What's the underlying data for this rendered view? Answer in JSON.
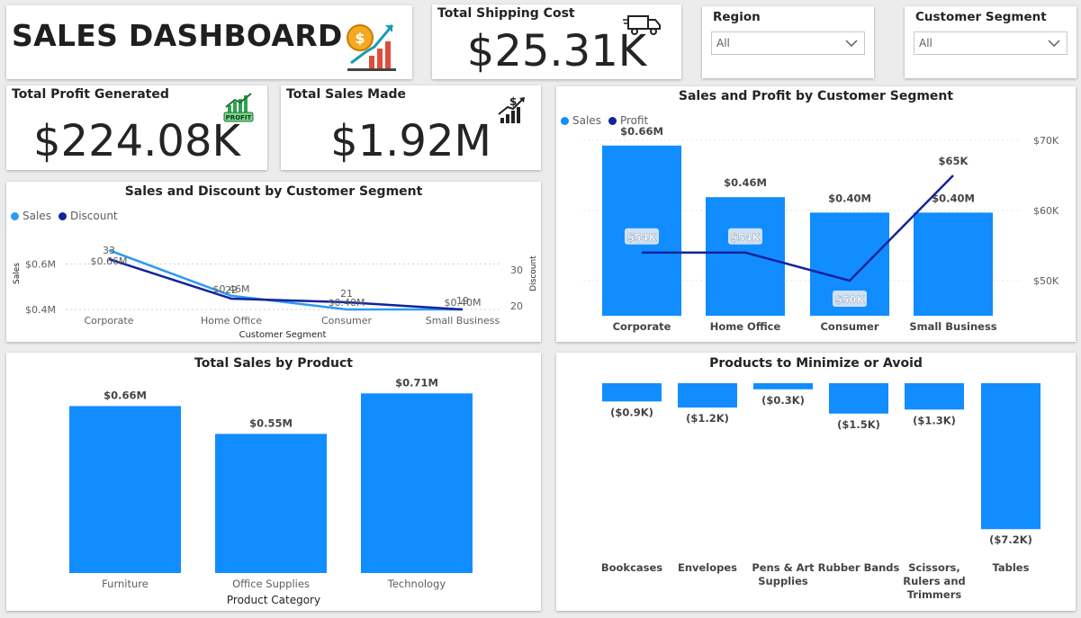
{
  "header": {
    "title": "SALES DASHBOARD",
    "title_icon": "sales-chart-icon"
  },
  "kpis": {
    "shipping": {
      "label": "Total Shipping Cost",
      "value": "$25.31K",
      "icon": "truck-icon"
    },
    "profit": {
      "label": "Total Profit Generated",
      "value": "$224.08K",
      "icon": "profit-chart-icon",
      "icon_text": "PROFIT"
    },
    "sales": {
      "label": "Total Sales Made",
      "value": "$1.92M",
      "icon": "growth-chart-icon",
      "icon_text": "$"
    }
  },
  "slicers": {
    "region": {
      "label": "Region",
      "value": "All"
    },
    "segment": {
      "label": "Customer Segment",
      "value": "All"
    }
  },
  "colors": {
    "sales": "#118dff",
    "profit": "#12239e",
    "discount": "#12239e",
    "sales_line": "#2b9af3"
  },
  "chart_data": [
    {
      "id": "sales_discount",
      "type": "line",
      "title": "Sales and Discount by Customer Segment",
      "legend": [
        "Sales",
        "Discount"
      ],
      "legend_position": "top-left",
      "xlabel": "Customer Segment",
      "ylabel": "Sales",
      "y2label": "Discount",
      "categories": [
        "Corporate",
        "Home Office",
        "Consumer",
        "Small Business"
      ],
      "y_ticks": [
        "$0.6M",
        "$0.4M"
      ],
      "y2_ticks": [
        "30",
        "20"
      ],
      "ylim": [
        0.4,
        0.7
      ],
      "y2lim": [
        16,
        35
      ],
      "series": [
        {
          "name": "Sales",
          "values": [
            0.66,
            0.46,
            0.4,
            0.4
          ],
          "labels": [
            "$0.66M",
            "$0.46M",
            "$0.40M",
            "$0.40M"
          ]
        },
        {
          "name": "Discount",
          "values": [
            33,
            22,
            21,
            19
          ],
          "labels": [
            "33",
            "22",
            "21",
            "19"
          ]
        }
      ]
    },
    {
      "id": "sales_profit",
      "type": "bar",
      "title": "Sales and Profit by Customer Segment",
      "legend": [
        "Sales",
        "Profit"
      ],
      "legend_position": "top-left",
      "categories": [
        "Corporate",
        "Home Office",
        "Consumer",
        "Small Business"
      ],
      "y2_ticks": [
        "$70K",
        "$60K",
        "$50K"
      ],
      "ylim": [
        0,
        0.75
      ],
      "y2lim": [
        45,
        72
      ],
      "series": [
        {
          "name": "Sales",
          "values": [
            0.66,
            0.46,
            0.4,
            0.4
          ],
          "labels": [
            "$0.66M",
            "$0.46M",
            "$0.40M",
            "$0.40M"
          ]
        },
        {
          "name": "Profit",
          "values": [
            54,
            54,
            50,
            65
          ],
          "labels": [
            "$54K",
            "$54K",
            "$50K",
            "$65K"
          ]
        }
      ]
    },
    {
      "id": "sales_by_product",
      "type": "bar",
      "title": "Total Sales by Product",
      "xlabel": "Product Category",
      "categories": [
        "Furniture",
        "Office Supplies",
        "Technology"
      ],
      "ylim": [
        0,
        0.8
      ],
      "series": [
        {
          "name": "Sales",
          "values": [
            0.66,
            0.55,
            0.71
          ],
          "labels": [
            "$0.66M",
            "$0.55M",
            "$0.71M"
          ]
        }
      ]
    },
    {
      "id": "products_avoid",
      "type": "bar",
      "title": "Products to Minimize or Avoid",
      "categories": [
        "Bookcases",
        "Envelopes",
        "Pens & Art Supplies",
        "Rubber Bands",
        "Scissors, Rulers and Trimmers",
        "Tables"
      ],
      "category_lines": [
        [
          "Bookcases"
        ],
        [
          "Envelopes"
        ],
        [
          "Pens & Art",
          "Supplies"
        ],
        [
          "Rubber Bands"
        ],
        [
          "Scissors,",
          "Rulers and",
          "Trimmers"
        ],
        [
          "Tables"
        ]
      ],
      "ylim": [
        -7.5,
        0
      ],
      "series": [
        {
          "name": "Profit",
          "values": [
            -0.9,
            -1.2,
            -0.3,
            -1.5,
            -1.3,
            -7.2
          ],
          "labels": [
            "($0.9K)",
            "($1.2K)",
            "($0.3K)",
            "($1.5K)",
            "($1.3K)",
            "($7.2K)"
          ]
        }
      ]
    }
  ]
}
